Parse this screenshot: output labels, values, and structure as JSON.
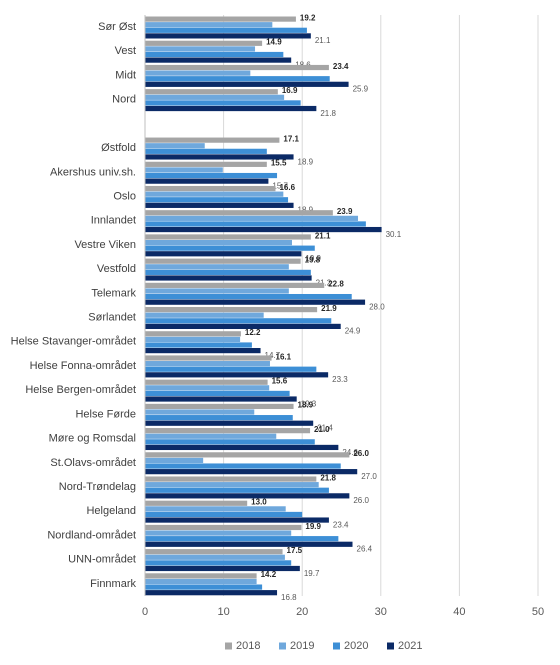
{
  "chart_data": {
    "type": "hbar",
    "categories": [
      "Sør Øst",
      "Vest",
      "Midt",
      "Nord",
      null,
      "Østfold",
      "Akershus univ.sh.",
      "Oslo",
      "Innlandet",
      "Vestre Viken",
      "Vestfold",
      "Telemark",
      "Sørlandet",
      "Helse Stavanger-området",
      "Helse Fonna-området",
      "Helse Bergen-området",
      "Helse Førde",
      "Møre og Romsdal",
      "St.Olavs-området",
      "Nord-Trøndelag",
      "Helgeland",
      "Nordland-området",
      "UNN-området",
      "Finnmark"
    ],
    "series": [
      {
        "name": "2018",
        "color": "#a5a5a5",
        "values": [
          19.2,
          14.9,
          23.4,
          16.9,
          null,
          17.1,
          15.5,
          16.6,
          23.9,
          21.1,
          19.8,
          22.8,
          21.9,
          12.2,
          16.1,
          15.6,
          18.9,
          21.0,
          26.0,
          21.8,
          13.0,
          19.9,
          17.5,
          14.2
        ],
        "value_labels": [
          "19.2",
          "14.9",
          "23.4",
          "16.9",
          null,
          "17.1",
          "15.5",
          "16.6",
          "23.9",
          "21.1",
          "19.8",
          "22.8",
          "21.9",
          "12.2",
          "16.1",
          "15.6",
          "18.9",
          "21.0",
          "26.0",
          "21.8",
          "13.0",
          "19.9",
          "17.5",
          "14.2"
        ]
      },
      {
        "name": "2019",
        "color": "#6fa8dc",
        "values": [
          16.2,
          14.0,
          13.4,
          17.7,
          null,
          7.6,
          9.9,
          17.6,
          27.1,
          18.7,
          18.3,
          18.3,
          15.1,
          12.1,
          15.9,
          15.8,
          13.9,
          16.7,
          7.4,
          22.1,
          17.9,
          18.6,
          17.8,
          14.2
        ]
      },
      {
        "name": "2020",
        "color": "#3d8fd6",
        "values": [
          20.6,
          17.6,
          23.5,
          19.8,
          null,
          15.5,
          16.8,
          18.2,
          28.1,
          21.6,
          21.1,
          26.3,
          23.7,
          13.6,
          21.8,
          18.4,
          18.8,
          21.6,
          24.9,
          23.4,
          20.0,
          24.6,
          18.6,
          14.9
        ]
      },
      {
        "name": "2021",
        "color": "#0b2a66",
        "values": [
          21.1,
          18.6,
          25.9,
          21.8,
          null,
          18.9,
          15.7,
          18.9,
          30.1,
          19.9,
          21.2,
          28.0,
          24.9,
          14.7,
          23.3,
          19.3,
          21.4,
          24.6,
          27.0,
          26.0,
          23.4,
          26.4,
          19.7,
          16.8
        ],
        "value_labels": [
          "21.1",
          "18.6",
          "25.9",
          "21.8",
          null,
          "18.9",
          "15.7",
          "18.9",
          "30.1",
          "19.9",
          "21.2",
          "28.0",
          "24.9",
          "14.7",
          "23.3",
          "19.3",
          "21.4",
          "24.6",
          "27.0",
          "26.0",
          "23.4",
          "26.4",
          "19.7",
          "16.8"
        ]
      }
    ],
    "xlim": [
      0,
      50
    ],
    "xticks": [
      0,
      10,
      20,
      30,
      40,
      50
    ],
    "grid": true,
    "legend": "bottom"
  }
}
